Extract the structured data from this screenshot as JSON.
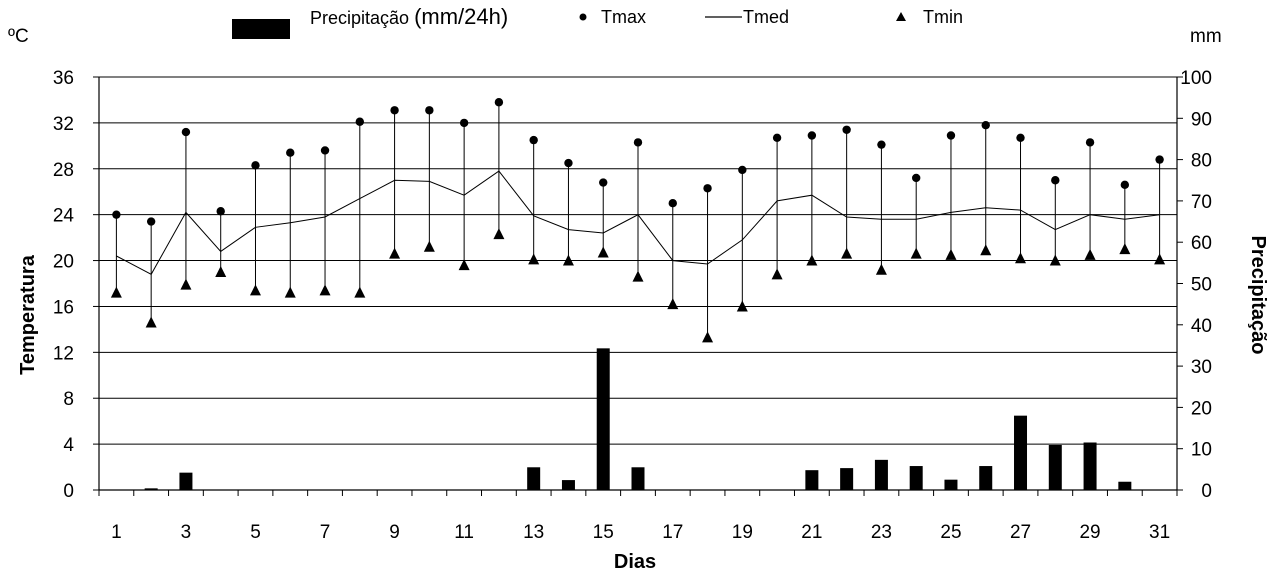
{
  "chart_data": {
    "type": "bar+line",
    "legend": {
      "placement": "top",
      "items": [
        {
          "label_prefix": "Precipitação ",
          "label_suffix": "(mm/24h)",
          "marker": "bar"
        },
        {
          "label": "Tmax",
          "marker": "circle"
        },
        {
          "label": "Tmed",
          "marker": "line"
        },
        {
          "label": "Tmin",
          "marker": "triangle"
        }
      ]
    },
    "left_axis": {
      "label": "Temperatura",
      "unit": "ºC",
      "range": [
        0,
        36
      ],
      "ticks": [
        "0",
        "4",
        "8",
        "12",
        "16",
        "20",
        "24",
        "28",
        "32",
        "36"
      ]
    },
    "right_axis": {
      "label": "Precipitação",
      "unit": "mm",
      "range": [
        0,
        100
      ],
      "ticks": [
        "0",
        "10",
        "20",
        "30",
        "40",
        "50",
        "60",
        "70",
        "80",
        "90",
        "100"
      ]
    },
    "x_axis": {
      "label": "Dias",
      "ticks": [
        "1",
        "3",
        "5",
        "7",
        "9",
        "11",
        "13",
        "15",
        "17",
        "19",
        "21",
        "23",
        "25",
        "27",
        "29",
        "31"
      ]
    },
    "grid": true,
    "days": [
      1,
      2,
      3,
      4,
      5,
      6,
      7,
      8,
      9,
      10,
      11,
      12,
      13,
      14,
      15,
      16,
      17,
      18,
      19,
      20,
      21,
      22,
      23,
      24,
      25,
      26,
      27,
      28,
      29,
      30,
      31
    ],
    "series": [
      {
        "name": "Tmax",
        "axis": "left",
        "values": [
          24.0,
          23.4,
          31.2,
          24.3,
          28.3,
          29.4,
          29.6,
          32.1,
          33.1,
          33.1,
          32.0,
          33.8,
          30.5,
          28.5,
          26.8,
          30.3,
          25.0,
          26.3,
          27.9,
          30.7,
          30.9,
          31.4,
          30.1,
          27.2,
          30.9,
          31.8,
          30.7,
          27.0,
          30.3,
          26.6,
          28.8
        ]
      },
      {
        "name": "Tmed",
        "axis": "left",
        "values": [
          20.4,
          18.8,
          24.2,
          20.8,
          22.9,
          23.3,
          23.8,
          25.4,
          27.0,
          26.9,
          25.7,
          27.8,
          23.9,
          22.7,
          22.4,
          24.0,
          20.0,
          19.7,
          21.8,
          25.2,
          25.7,
          23.8,
          23.6,
          23.6,
          24.2,
          24.6,
          24.4,
          22.7,
          24.0,
          23.6,
          24.0
        ]
      },
      {
        "name": "Tmin",
        "axis": "left",
        "values": [
          17.2,
          14.6,
          17.9,
          19.0,
          17.4,
          17.2,
          17.4,
          17.2,
          20.6,
          21.2,
          19.6,
          22.3,
          20.1,
          20.0,
          20.7,
          18.6,
          16.2,
          13.3,
          16.0,
          18.8,
          20.0,
          20.6,
          19.2,
          20.6,
          20.5,
          20.9,
          20.2,
          20.0,
          20.5,
          21.0,
          20.1
        ]
      },
      {
        "name": "Precipitação",
        "axis": "right",
        "type": "bar",
        "values": [
          0,
          0.4,
          4.2,
          0,
          0,
          0,
          0,
          0,
          0,
          0,
          0,
          0,
          5.5,
          2.4,
          34.3,
          5.5,
          0,
          0,
          0,
          0,
          4.8,
          5.3,
          7.3,
          5.8,
          2.5,
          5.8,
          18.0,
          10.9,
          11.5,
          2.0,
          0
        ]
      }
    ]
  }
}
